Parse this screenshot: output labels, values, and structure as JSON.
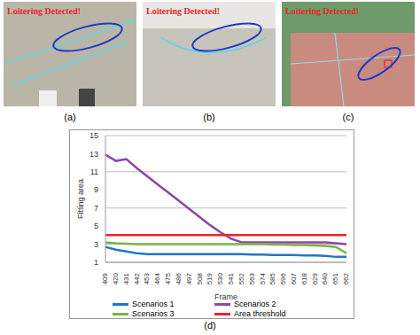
{
  "panels": [
    {
      "label": "(a)",
      "text": "Loitering Detected!"
    },
    {
      "label": "(b)",
      "text": "Loitering Detected!"
    },
    {
      "label": "(c)",
      "text": "Loitering Detected!"
    }
  ],
  "chart_data": {
    "type": "line",
    "label": "(d)",
    "x_label": "Frame",
    "y_label": "Fitting area",
    "categories": [
      409,
      420,
      431,
      442,
      453,
      464,
      475,
      486,
      497,
      508,
      519,
      530,
      541,
      552,
      563,
      574,
      585,
      596,
      607,
      618,
      629,
      640,
      651,
      662
    ],
    "ylim": [
      1,
      15
    ],
    "yticks": [
      1,
      3,
      5,
      7,
      9,
      11,
      13,
      15
    ],
    "grid": true,
    "legend": "bottom",
    "series": [
      {
        "name": "Scenarios 1",
        "color": "#1f77c4",
        "values": [
          2.7,
          2.4,
          2.2,
          2.0,
          1.9,
          1.9,
          1.9,
          1.9,
          1.9,
          1.9,
          1.9,
          1.9,
          1.9,
          1.9,
          1.85,
          1.85,
          1.8,
          1.8,
          1.8,
          1.75,
          1.75,
          1.7,
          1.6,
          1.6
        ]
      },
      {
        "name": "Scenarios 2",
        "color": "#8e44ad",
        "values": [
          12.9,
          12.2,
          12.4,
          11.4,
          10.5,
          9.6,
          8.7,
          7.8,
          6.9,
          6.0,
          5.1,
          4.3,
          3.6,
          3.2,
          3.2,
          3.2,
          3.2,
          3.2,
          3.2,
          3.2,
          3.2,
          3.2,
          3.1,
          3.0
        ]
      },
      {
        "name": "Scenarios 3",
        "color": "#7cb342",
        "values": [
          3.2,
          3.1,
          3.05,
          3.0,
          3.0,
          3.0,
          3.0,
          3.0,
          3.0,
          3.0,
          3.0,
          3.0,
          3.0,
          3.0,
          3.0,
          3.0,
          2.95,
          2.95,
          2.9,
          2.9,
          2.85,
          2.8,
          2.7,
          2.0
        ]
      },
      {
        "name": "Area threshold",
        "color": "#e8262a",
        "values": [
          4,
          4,
          4,
          4,
          4,
          4,
          4,
          4,
          4,
          4,
          4,
          4,
          4,
          4,
          4,
          4,
          4,
          4,
          4,
          4,
          4,
          4,
          4,
          4
        ]
      }
    ]
  }
}
